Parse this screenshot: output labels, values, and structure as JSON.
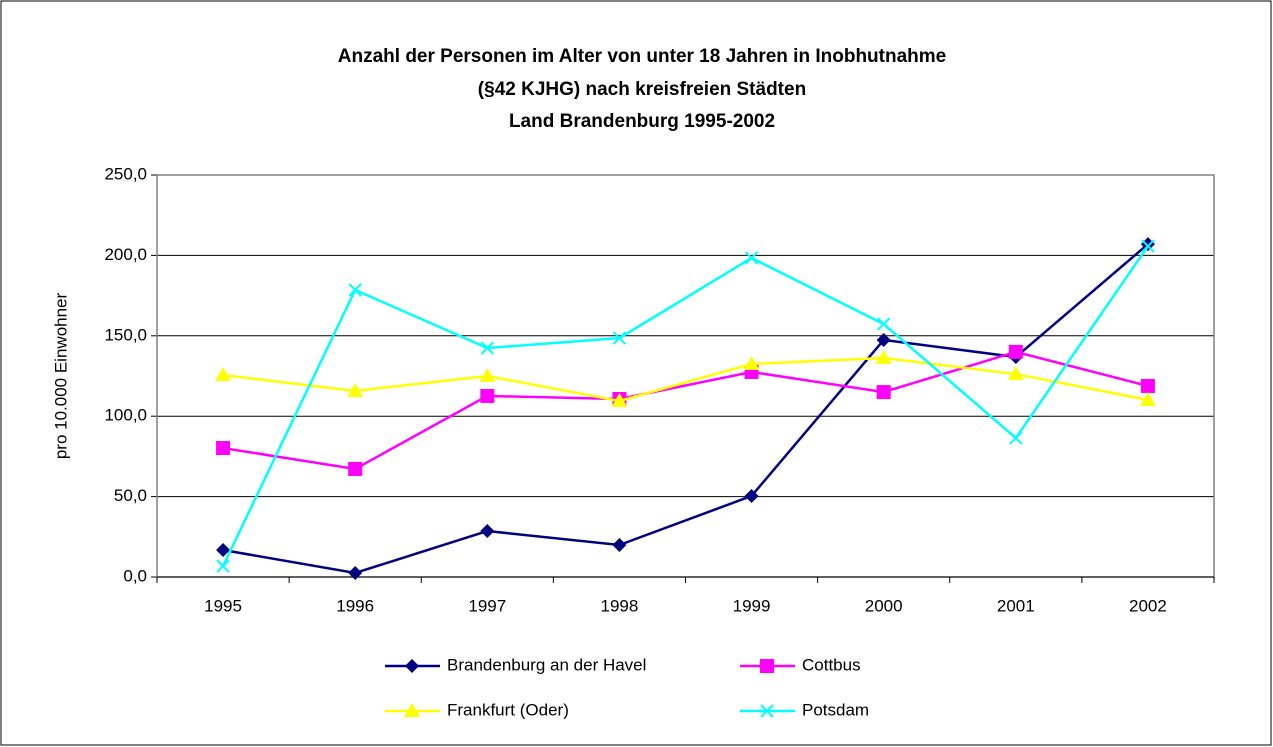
{
  "chart_data": {
    "type": "line",
    "title": [
      "Anzahl der Personen im Alter von unter 18 Jahren in Inobhutnahme",
      "(§42 KJHG) nach kreisfreien Städten",
      "Land Brandenburg 1995-2002"
    ],
    "y_label": "pro 10.000 Einwohner",
    "categories": [
      "1995",
      "1996",
      "1997",
      "1998",
      "1999",
      "2000",
      "2001",
      "2002"
    ],
    "series": [
      {
        "name": "Brandenburg an der Havel",
        "color": "#000080",
        "marker": "diamond",
        "values": [
          16.8,
          2.5,
          28.6,
          19.9,
          50.4,
          147.4,
          136.8,
          207.0
        ]
      },
      {
        "name": "Cottbus",
        "color": "#ff00ff",
        "marker": "square",
        "values": [
          80.2,
          67.2,
          112.6,
          110.7,
          127.5,
          115.0,
          140.0,
          118.8
        ]
      },
      {
        "name": "Frankfurt (Oder)",
        "color": "#ffff00",
        "marker": "triangle",
        "values": [
          125.6,
          115.7,
          125.0,
          109.5,
          132.5,
          136.2,
          126.2,
          110.1
        ]
      },
      {
        "name": "Potsdam",
        "color": "#00ffff",
        "marker": "x",
        "values": [
          6.8,
          178.5,
          142.4,
          148.6,
          198.4,
          157.3,
          86.4,
          205.8
        ]
      }
    ],
    "ylim": [
      0,
      250
    ],
    "yticks": [
      {
        "value": 0,
        "label": "0,0"
      },
      {
        "value": 50,
        "label": "50,0"
      },
      {
        "value": 100,
        "label": "100,0"
      },
      {
        "value": 150,
        "label": "150,0"
      },
      {
        "value": 200,
        "label": "200,0"
      },
      {
        "value": 250,
        "label": "250,0"
      }
    ],
    "grid": true,
    "legend": "bottom"
  }
}
